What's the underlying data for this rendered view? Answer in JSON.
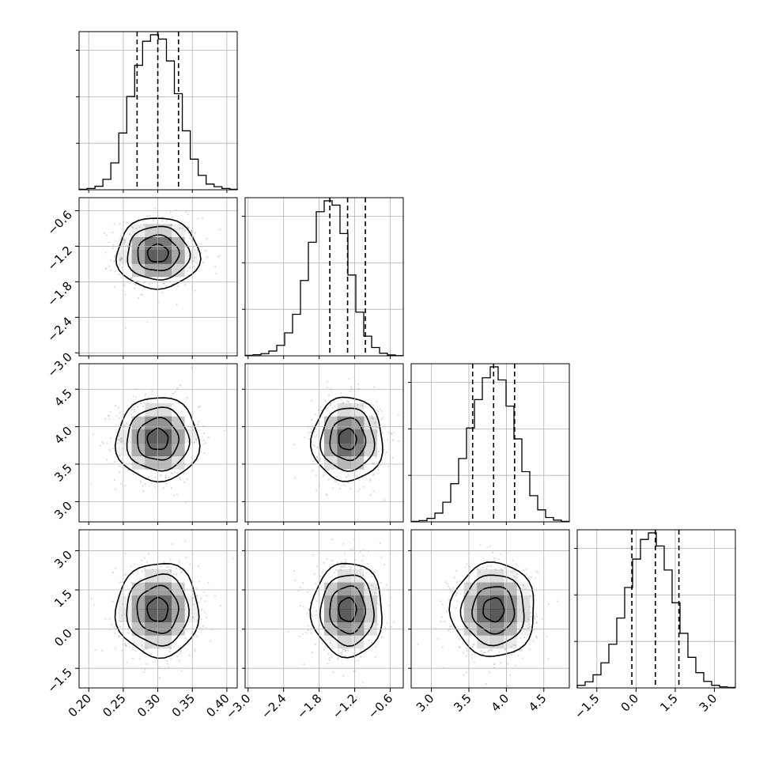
{
  "chart_data": {
    "type": "corner",
    "parameters": [
      {
        "index": 0,
        "range": [
          0.186,
          0.415
        ],
        "ticks": [
          0.2,
          0.25,
          0.3,
          0.35,
          0.4
        ],
        "tick_labels": [
          "0.20",
          "0.25",
          "0.30",
          "0.35",
          "0.40"
        ],
        "mean": 0.3,
        "std": 0.03
      },
      {
        "index": 1,
        "range": [
          -3.05,
          -0.38
        ],
        "ticks": [
          -3.0,
          -2.4,
          -1.8,
          -1.2,
          -0.6
        ],
        "tick_labels": [
          "−3.0",
          "−2.4",
          "−1.8",
          "−1.2",
          "−0.6"
        ],
        "mean": -1.32,
        "std": 0.3
      },
      {
        "index": 2,
        "range": [
          2.73,
          4.84
        ],
        "ticks": [
          3.0,
          3.5,
          4.0,
          4.5
        ],
        "tick_labels": [
          "3.0",
          "3.5",
          "4.0",
          "4.5"
        ],
        "mean": 3.83,
        "std": 0.28
      },
      {
        "index": 3,
        "range": [
          -2.25,
          3.8
        ],
        "ticks": [
          -1.5,
          0.0,
          1.5,
          3.0
        ],
        "tick_labels": [
          "−1.5",
          "0.0",
          "1.5",
          "3.0"
        ],
        "mean": 0.74,
        "std": 0.9
      }
    ],
    "histograms": [
      {
        "parameter": 0,
        "bin_edges": [
          0.186,
          0.1975,
          0.209,
          0.2205,
          0.232,
          0.2435,
          0.255,
          0.2665,
          0.278,
          0.2895,
          0.301,
          0.3125,
          0.324,
          0.3355,
          0.347,
          0.3585,
          0.37,
          0.3815,
          0.393,
          0.4045,
          0.416
        ],
        "counts": [
          2,
          6,
          16,
          48,
          123,
          260,
          427,
          570,
          680,
          710,
          690,
          590,
          440,
          270,
          140,
          66,
          26,
          14,
          6,
          2
        ],
        "quantile_lines": [
          0.27,
          0.3,
          0.33
        ]
      },
      {
        "parameter": 1,
        "bin_edges": [
          -3.05,
          -2.9165,
          -2.783,
          -2.6495,
          -2.516,
          -2.3825,
          -2.249,
          -2.1155,
          -1.982,
          -1.8485,
          -1.715,
          -1.5815,
          -1.448,
          -1.3145,
          -1.181,
          -1.0475,
          -0.914,
          -0.7805,
          -0.647,
          -0.5135,
          -0.38
        ],
        "counts": [
          2,
          5,
          10,
          22,
          48,
          105,
          190,
          345,
          520,
          660,
          710,
          690,
          560,
          370,
          200,
          90,
          38,
          12,
          4,
          1
        ],
        "quantile_lines": [
          -1.62,
          -1.32,
          -1.02
        ]
      },
      {
        "parameter": 2,
        "bin_edges": [
          2.73,
          2.8355,
          2.941,
          3.0465,
          3.152,
          3.2575,
          3.363,
          3.4685,
          3.574,
          3.6795,
          3.785,
          3.8905,
          3.996,
          4.1015,
          4.207,
          4.3125,
          4.418,
          4.5235,
          4.629,
          4.7345,
          4.84
        ],
        "counts": [
          2,
          6,
          16,
          40,
          90,
          175,
          290,
          430,
          560,
          660,
          710,
          650,
          530,
          380,
          230,
          120,
          55,
          20,
          8,
          2
        ],
        "quantile_lines": [
          3.55,
          3.83,
          4.11
        ]
      },
      {
        "parameter": 3,
        "bin_edges": [
          -2.25,
          -1.9475,
          -1.645,
          -1.3425,
          -1.04,
          -0.7375,
          -0.435,
          -0.1325,
          0.17,
          0.4725,
          0.775,
          1.0775,
          1.38,
          1.6825,
          1.985,
          2.2875,
          2.59,
          2.8925,
          3.195,
          3.4975,
          3.8
        ],
        "counts": [
          12,
          28,
          60,
          115,
          200,
          320,
          460,
          590,
          680,
          710,
          650,
          540,
          390,
          250,
          140,
          70,
          30,
          12,
          5,
          2
        ],
        "quantile_lines": [
          -0.16,
          0.74,
          1.64
        ]
      }
    ],
    "pairs": [
      {
        "x": 0,
        "y": 1
      },
      {
        "x": 0,
        "y": 2
      },
      {
        "x": 1,
        "y": 2
      },
      {
        "x": 0,
        "y": 3
      },
      {
        "x": 1,
        "y": 3
      },
      {
        "x": 2,
        "y": 3
      }
    ],
    "contour_levels_sigma": [
      0.5,
      1.0,
      1.5,
      2.0
    ],
    "grid": true,
    "colors": {
      "line": "#000000",
      "scatter": "#9a9a9a",
      "density": "#000000",
      "grid": "#b0b0b0"
    }
  }
}
